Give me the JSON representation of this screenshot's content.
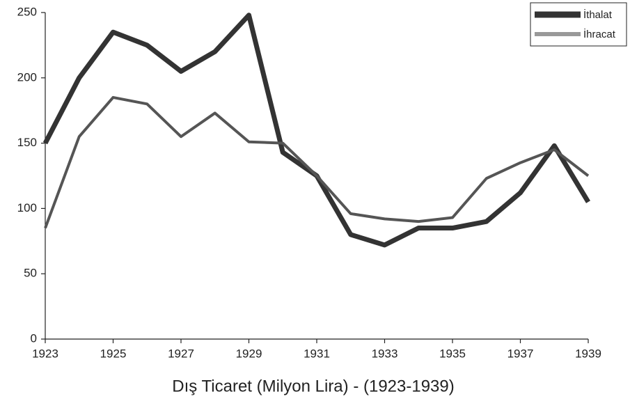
{
  "chart_data": {
    "type": "line",
    "title": "Dış Ticaret (Milyon Lira) - (1923-1939)",
    "x": [
      1923,
      1924,
      1925,
      1926,
      1927,
      1928,
      1929,
      1930,
      1931,
      1932,
      1933,
      1934,
      1935,
      1936,
      1937,
      1938,
      1939
    ],
    "series": [
      {
        "name": "İthalat",
        "color": "#333333",
        "values": [
          150,
          200,
          235,
          225,
          205,
          220,
          248,
          143,
          125,
          80,
          72,
          85,
          85,
          90,
          112,
          148,
          105
        ]
      },
      {
        "name": "İhracat",
        "color": "#555555",
        "values": [
          85,
          155,
          185,
          180,
          155,
          173,
          151,
          150,
          125,
          96,
          92,
          90,
          93,
          123,
          135,
          145,
          125
        ]
      }
    ],
    "xlim": [
      1923,
      1939
    ],
    "xticks": [
      1923,
      1925,
      1927,
      1929,
      1931,
      1933,
      1935,
      1937,
      1939
    ],
    "ylim": [
      0,
      250
    ],
    "yticks": [
      0,
      50,
      100,
      150,
      200,
      250
    ],
    "legend": "top-right"
  }
}
